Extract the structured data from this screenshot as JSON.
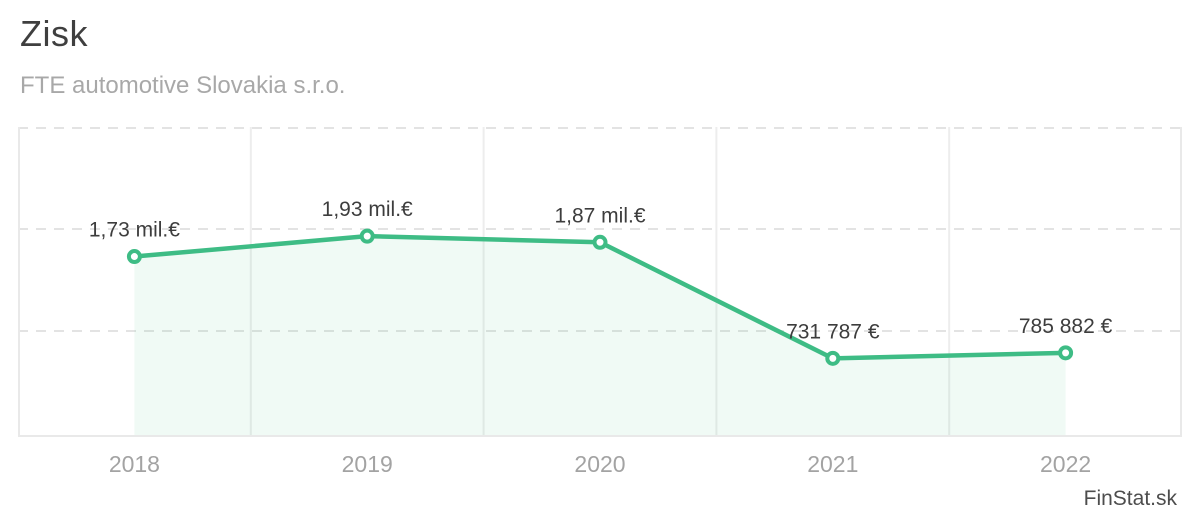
{
  "header": {
    "title": "Zisk",
    "subtitle": "FTE automotive Slovakia s.r.o."
  },
  "footer": {
    "watermark": "FinStat.sk"
  },
  "colors": {
    "line": "#3ebc85",
    "marker_fill": "#ffffff",
    "area_fill": "rgba(62, 188, 133, 0.08)",
    "grid_dashed": "#e3e3e3",
    "grid_vertical": "#ededed",
    "frame": "#e9e9e9",
    "value_label": "#3d3d3d"
  },
  "chart_data": {
    "type": "area",
    "title": "Zisk",
    "subtitle": "FTE automotive Slovakia s.r.o.",
    "categories": [
      "2018",
      "2019",
      "2020",
      "2021",
      "2022"
    ],
    "values": [
      1730000,
      1930000,
      1870000,
      731787,
      785882
    ],
    "point_labels": [
      "1,73 mil.€",
      "1,93 mil.€",
      "1,87 mil.€",
      "731 787 €",
      "785 882 €"
    ],
    "unit": "€",
    "xlabel": "",
    "ylabel": "",
    "ylim": [
      0,
      3000000
    ],
    "gridline_values": [
      3000000,
      2000000,
      1000000
    ],
    "grid": "horizontal dashed lines, solid vertical column separators",
    "legend": "none",
    "marker": "open circle",
    "area_from": "line to baseline between first and last point"
  }
}
